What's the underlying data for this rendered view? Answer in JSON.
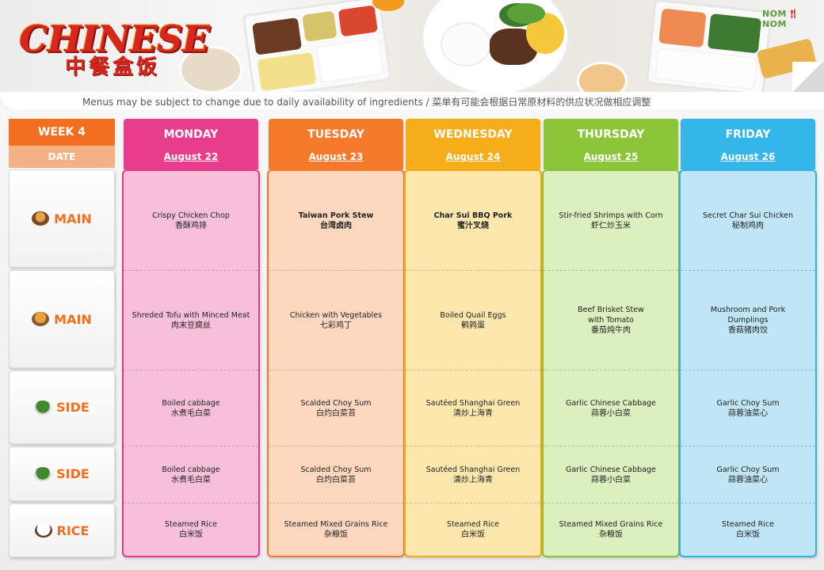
{
  "header": {
    "logo_en": "CHINESE",
    "logo_zh": "中餐盒饭",
    "brand_left": "NOM",
    "brand_right": "NOM",
    "subtitle": "Menus may be subject to change due to daily availability  of ingredients / 菜单有可能会根据日常原材料的供应状况做相应调整"
  },
  "left": {
    "week": "WEEK 4",
    "date_label": "DATE",
    "rows": [
      {
        "label": "MAIN",
        "icon": "fried-chicken-bowl-icon"
      },
      {
        "label": "MAIN",
        "icon": "fries-bowl-icon"
      },
      {
        "label": "SIDE",
        "icon": "greens-bowl-icon"
      },
      {
        "label": "SIDE",
        "icon": "greens-bowl-icon"
      },
      {
        "label": "RICE",
        "icon": "rice-bowl-icon"
      }
    ]
  },
  "days": [
    {
      "name": "MONDAY",
      "date": "August 22",
      "head_color": "#e83d8c",
      "body_bg": "#f7bfd9",
      "border": "#e03b8a",
      "cells": [
        {
          "en": "Crispy Chicken Chop",
          "zh": "香酥鸡排",
          "bold": false
        },
        {
          "en": "Shreded Tofu with Minced Meat",
          "zh": "肉末豆腐丝",
          "bold": false
        },
        {
          "en": "Boiled  cabbage",
          "zh": "水煮毛白菜",
          "bold": false
        },
        {
          "en": "Boiled  cabbage",
          "zh": "水煮毛白菜",
          "bold": false
        },
        {
          "en": "Steamed Rice",
          "zh": "白米饭",
          "bold": false
        }
      ]
    },
    {
      "name": "TUESDAY",
      "date": "August 23",
      "head_color": "#f57a2c",
      "body_bg": "#fdd8bf",
      "border": "#f4772a",
      "cells": [
        {
          "en": "Taiwan Pork Stew",
          "zh": "台湾卤肉",
          "bold": true
        },
        {
          "en": "Chicken with Vegetables",
          "zh": "七彩鸡丁",
          "bold": false
        },
        {
          "en": "Scalded Choy Sum",
          "zh": "白灼白菜苔",
          "bold": false
        },
        {
          "en": "Scalded Choy Sum",
          "zh": "白灼白菜苔",
          "bold": false
        },
        {
          "en": "Steamed Mixed Grains Rice",
          "zh": "杂粮饭",
          "bold": false
        }
      ]
    },
    {
      "name": "WEDNESDAY",
      "date": "August 24",
      "head_color": "#f6ad1a",
      "body_bg": "#fde7ad",
      "border": "#f1a816",
      "cells": [
        {
          "en": "Char Sui BBQ Pork",
          "zh": "蜜汁叉烧",
          "bold": true
        },
        {
          "en": "Boiled Quail Eggs",
          "zh": "鹌鹑蛋",
          "bold": false
        },
        {
          "en": "Sautéed Shanghai Green",
          "zh": "清炒上海青",
          "bold": false
        },
        {
          "en": "Sautéed Shanghai Green",
          "zh": "清炒上海青",
          "bold": false
        },
        {
          "en": "Steamed Rice",
          "zh": "白米饭",
          "bold": false
        }
      ]
    },
    {
      "name": "THURSDAY",
      "date": "August 25",
      "head_color": "#8cc43a",
      "body_bg": "#dcefbe",
      "border": "#86c035",
      "cells": [
        {
          "en": "Stir-fried Shrimps  with Corn",
          "zh": "虾仁炒玉米",
          "bold": false
        },
        {
          "en": "Beef Brisket  Stew\nwith Tomato",
          "zh": "番茄炖牛肉",
          "bold": false
        },
        {
          "en": "Garlic Chinese  Cabbage",
          "zh": "蒜蓉小白菜",
          "bold": false
        },
        {
          "en": "Garlic Chinese  Cabbage",
          "zh": "蒜蓉小白菜",
          "bold": false
        },
        {
          "en": "Steamed Mixed Grains Rice",
          "zh": "杂粮饭",
          "bold": false
        }
      ]
    },
    {
      "name": "FRIDAY",
      "date": "August 26",
      "head_color": "#35b6ea",
      "body_bg": "#bfe5f7",
      "border": "#31b2e6",
      "cells": [
        {
          "en": "Secret Char Sui  Chicken",
          "zh": "秘制鸡肉",
          "bold": false
        },
        {
          "en": "Mushroom  and Pork\nDumplings",
          "zh": "香菇猪肉饺",
          "bold": false
        },
        {
          "en": "Garlic Choy  Sum",
          "zh": "蒜蓉油菜心",
          "bold": false
        },
        {
          "en": "Garlic Choy  Sum",
          "zh": "蒜蓉油菜心",
          "bold": false
        },
        {
          "en": "Steamed Rice",
          "zh": "白米饭",
          "bold": false
        }
      ]
    }
  ]
}
